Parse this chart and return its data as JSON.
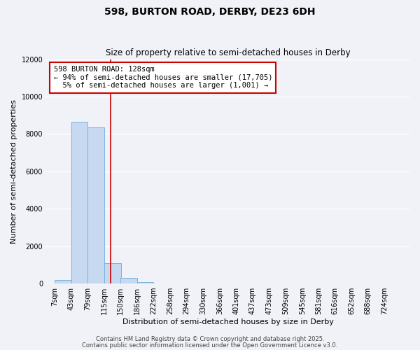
{
  "title": "598, BURTON ROAD, DERBY, DE23 6DH",
  "subtitle": "Size of property relative to semi-detached houses in Derby",
  "xlabel": "Distribution of semi-detached houses by size in Derby",
  "ylabel": "Number of semi-detached properties",
  "bin_labels": [
    "7sqm",
    "43sqm",
    "79sqm",
    "115sqm",
    "150sqm",
    "186sqm",
    "222sqm",
    "258sqm",
    "294sqm",
    "330sqm",
    "366sqm",
    "401sqm",
    "437sqm",
    "473sqm",
    "509sqm",
    "545sqm",
    "581sqm",
    "616sqm",
    "652sqm",
    "688sqm",
    "724sqm"
  ],
  "bin_edges": [
    7,
    43,
    79,
    115,
    150,
    186,
    222,
    258,
    294,
    330,
    366,
    401,
    437,
    473,
    509,
    545,
    581,
    616,
    652,
    688,
    724
  ],
  "bar_heights": [
    200,
    8650,
    8350,
    1100,
    310,
    90,
    0,
    0,
    0,
    0,
    0,
    0,
    0,
    0,
    0,
    0,
    0,
    0,
    0,
    0
  ],
  "bar_color": "#c6d9f0",
  "bar_edge_color": "#7ab3d9",
  "property_size": 128,
  "property_label": "598 BURTON ROAD: 128sqm",
  "pct_smaller": 94,
  "pct_smaller_count": "17,705",
  "pct_larger": 5,
  "pct_larger_count": "1,001",
  "vline_color": "#cc0000",
  "annotation_box_edge": "#cc0000",
  "ylim": [
    0,
    12000
  ],
  "yticks": [
    0,
    2000,
    4000,
    6000,
    8000,
    10000,
    12000
  ],
  "footer1": "Contains HM Land Registry data © Crown copyright and database right 2025.",
  "footer2": "Contains public sector information licensed under the Open Government Licence v3.0.",
  "background_color": "#f0f2f8",
  "grid_color": "#ffffff",
  "title_fontsize": 10,
  "subtitle_fontsize": 8.5,
  "axis_label_fontsize": 8,
  "tick_fontsize": 7,
  "footer_fontsize": 6,
  "annotation_fontsize": 7.5
}
